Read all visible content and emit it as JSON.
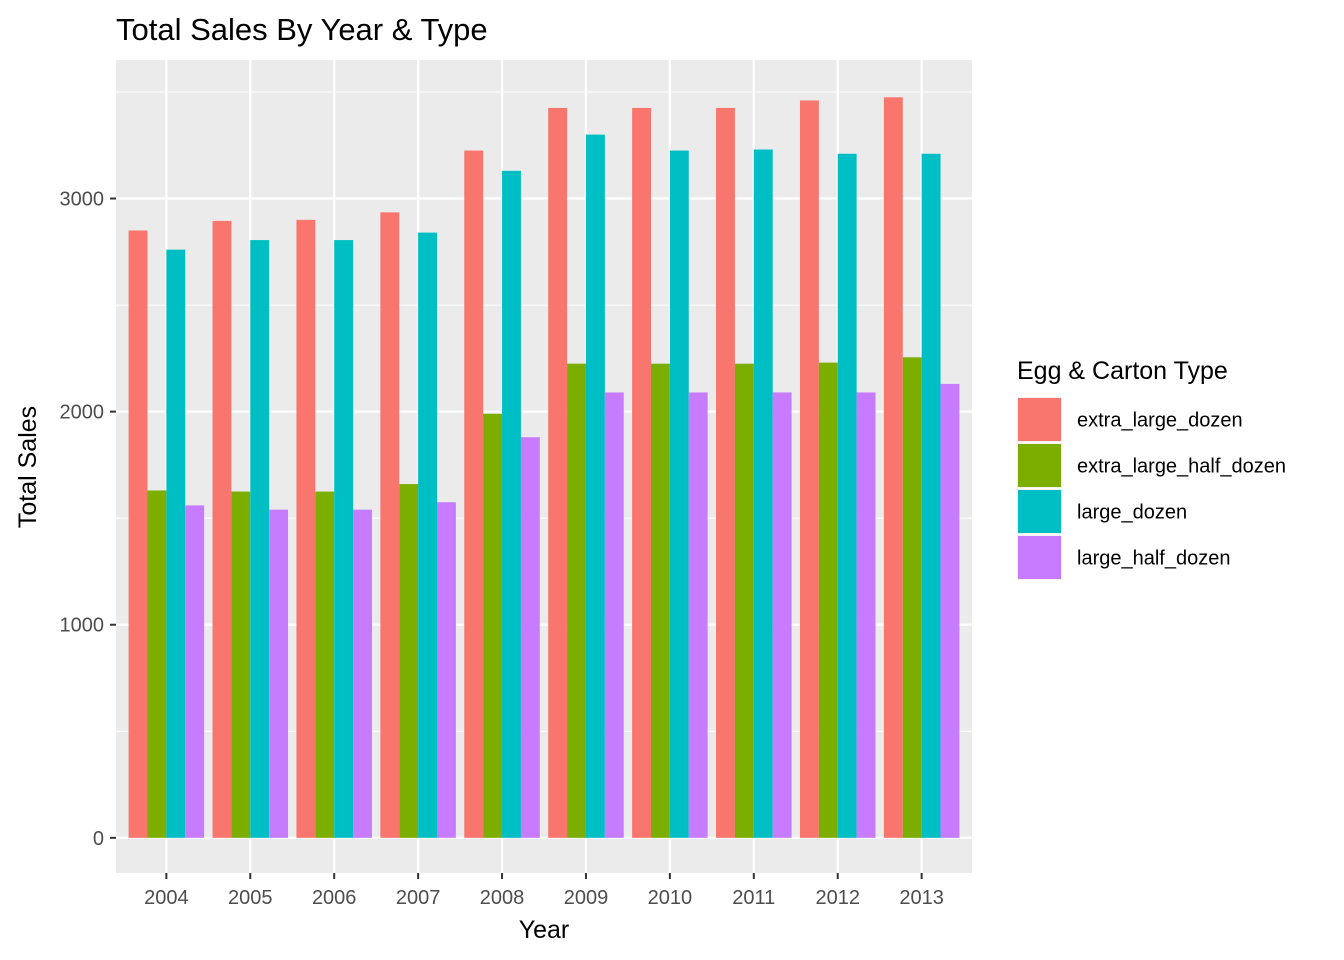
{
  "chart_data": {
    "type": "bar",
    "title": "Total Sales By Year & Type",
    "xlabel": "Year",
    "ylabel": "Total Sales",
    "categories": [
      "2004",
      "2005",
      "2006",
      "2007",
      "2008",
      "2009",
      "2010",
      "2011",
      "2012",
      "2013"
    ],
    "series": [
      {
        "name": "extra_large_dozen",
        "color": "#F8766D",
        "values": [
          2850,
          2895,
          2900,
          2935,
          3225,
          3425,
          3425,
          3425,
          3460,
          3475
        ]
      },
      {
        "name": "extra_large_half_dozen",
        "color": "#7CAE00",
        "values": [
          1630,
          1625,
          1625,
          1660,
          1990,
          2225,
          2225,
          2225,
          2230,
          2255
        ]
      },
      {
        "name": "large_dozen",
        "color": "#00BFC4",
        "values": [
          2760,
          2805,
          2805,
          2840,
          3130,
          3300,
          3225,
          3230,
          3210,
          3210
        ]
      },
      {
        "name": "large_half_dozen",
        "color": "#C77CFF",
        "values": [
          1560,
          1540,
          1540,
          1575,
          1880,
          2090,
          2090,
          2090,
          2090,
          2130
        ]
      }
    ],
    "yticks": [
      "0",
      "1000",
      "2000",
      "3000"
    ],
    "ylim": [
      -165,
      3650
    ],
    "legend": {
      "title": "Egg & Carton Type",
      "position": "right"
    },
    "grid": true,
    "panel_background": "#EBEBEB",
    "grid_color": "#FFFFFF"
  }
}
